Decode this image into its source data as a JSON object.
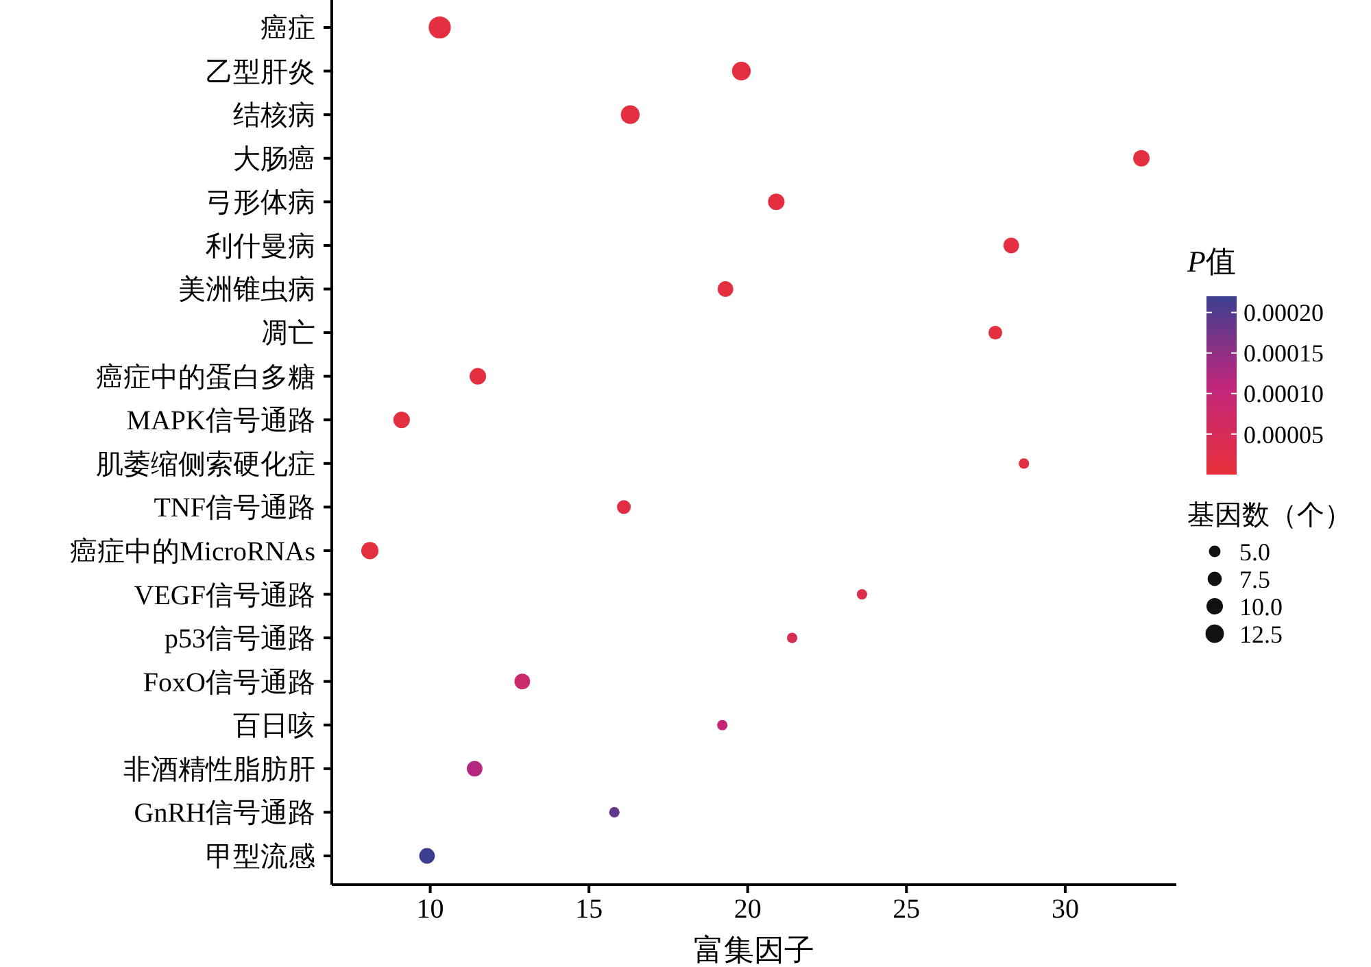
{
  "chart_data": {
    "type": "bubble",
    "xlabel": "富集因子",
    "clabel": "P值",
    "legend_title": "基因数（个）",
    "categories": [
      "癌症",
      "乙型肝炎",
      "结核病",
      "大肠癌",
      "弓形体病",
      "利什曼病",
      "美洲锥虫病",
      "凋亡",
      "癌症中的蛋白多糖",
      "MAPK信号通路",
      "肌萎缩侧索硬化症",
      "TNF信号通路",
      "癌症中的MicroRNAs",
      "VEGF信号通路",
      "p53信号通路",
      "FoxO信号通路",
      "百日咳",
      "非酒精性脂肪肝",
      "GnRH信号通路",
      "甲型流感"
    ],
    "values": [
      10.3,
      19.8,
      16.3,
      32.4,
      20.9,
      28.3,
      19.3,
      27.8,
      11.5,
      9.1,
      28.7,
      16.1,
      8.1,
      23.6,
      21.4,
      12.9,
      19.2,
      11.4,
      15.8,
      9.9
    ],
    "sizes": [
      18,
      13,
      13,
      10,
      10,
      9,
      9,
      7,
      10,
      10,
      4,
      7,
      11,
      4,
      4,
      9,
      4,
      9,
      4,
      9
    ],
    "size_legend": [
      {
        "value": 5,
        "label": "5.0"
      },
      {
        "value": 7.5,
        "label": "7.5"
      },
      {
        "value": 10,
        "label": "10.0"
      },
      {
        "value": 12.5,
        "label": "12.5"
      }
    ],
    "orientation": "horizontal",
    "cvalues": [
      1e-05,
      1e-05,
      1e-05,
      1e-05,
      1e-05,
      1e-05,
      1e-05,
      1e-05,
      1e-05,
      1e-05,
      1e-05,
      2e-05,
      1e-05,
      3e-05,
      4e-05,
      8e-05,
      0.0001,
      0.00012,
      0.00019,
      0.00022
    ],
    "clim": [
      0,
      0.00022
    ],
    "cticks": [
      {
        "value": 5e-05,
        "label": "0.00005"
      },
      {
        "value": 0.0001,
        "label": "0.00010"
      },
      {
        "value": 0.00015,
        "label": "0.00015"
      },
      {
        "value": 0.0002,
        "label": "0.00020"
      }
    ],
    "xlim": [
      6.9,
      33.5
    ],
    "xticks": [
      10,
      15,
      20,
      25,
      30
    ],
    "grid": false
  }
}
